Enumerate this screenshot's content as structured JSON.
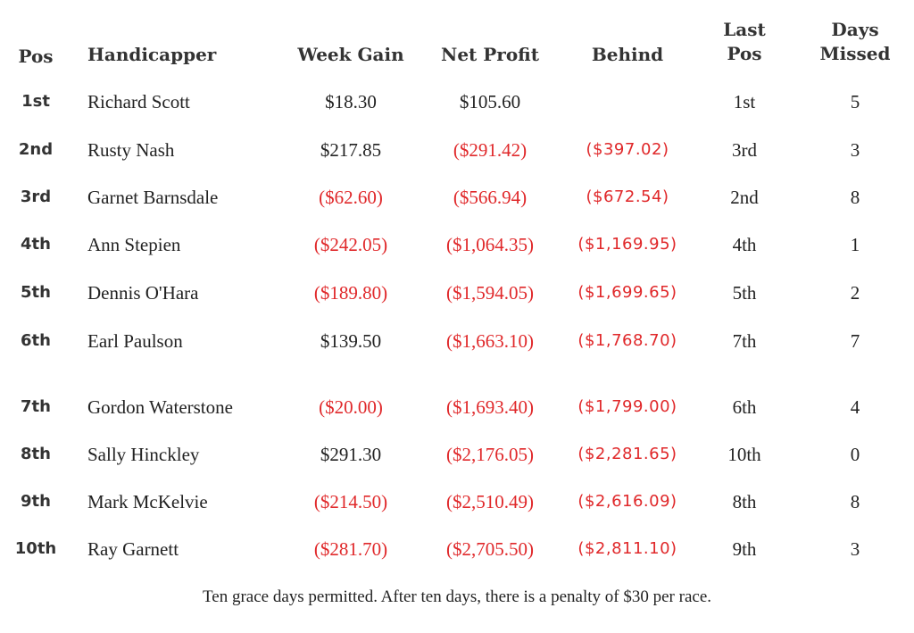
{
  "headers": {
    "pos": "Pos",
    "handicapper": "Handicapper",
    "week_gain": "Week Gain",
    "net_profit": "Net Profit",
    "behind": "Behind",
    "last_pos": [
      "Last",
      "Pos"
    ],
    "days_missed": [
      "Days",
      "Missed"
    ]
  },
  "rows": [
    {
      "pos": "1st",
      "name": "Richard Scott",
      "week_gain": "$18.30",
      "net_profit": "$105.60",
      "behind": "",
      "last_pos": "1st",
      "days_missed": "5"
    },
    {
      "pos": "2nd",
      "name": "Rusty Nash",
      "week_gain": "$217.85",
      "net_profit": "($291.42)",
      "behind": "($397.02)",
      "last_pos": "3rd",
      "days_missed": "3"
    },
    {
      "pos": "3rd",
      "name": "Garnet Barnsdale",
      "week_gain": "($62.60)",
      "net_profit": "($566.94)",
      "behind": "($672.54)",
      "last_pos": "2nd",
      "days_missed": "8"
    },
    {
      "pos": "4th",
      "name": "Ann Stepien",
      "week_gain": "($242.05)",
      "net_profit": "($1,064.35)",
      "behind": "($1,169.95)",
      "last_pos": "4th",
      "days_missed": "1"
    },
    {
      "pos": "5th",
      "name": "Dennis O'Hara",
      "week_gain": "($189.80)",
      "net_profit": "($1,594.05)",
      "behind": "($1,699.65)",
      "last_pos": "5th",
      "days_missed": "2"
    },
    {
      "pos": "6th",
      "name": "Earl Paulson",
      "week_gain": "$139.50",
      "net_profit": "($1,663.10)",
      "behind": "($1,768.70)",
      "last_pos": "7th",
      "days_missed": "7"
    },
    {
      "pos": "7th",
      "name": "Gordon Waterstone",
      "week_gain": "($20.00)",
      "net_profit": "($1,693.40)",
      "behind": "($1,799.00)",
      "last_pos": "6th",
      "days_missed": "4"
    },
    {
      "pos": "8th",
      "name": "Sally Hinckley",
      "week_gain": "$291.30",
      "net_profit": "($2,176.05)",
      "behind": "($2,281.65)",
      "last_pos": "10th",
      "days_missed": "0"
    },
    {
      "pos": "9th",
      "name": "Mark McKelvie",
      "week_gain": "($214.50)",
      "net_profit": "($2,510.49)",
      "behind": "($2,616.09)",
      "last_pos": "8th",
      "days_missed": "8"
    },
    {
      "pos": "10th",
      "name": "Ray Garnett",
      "week_gain": "($281.70)",
      "net_profit": "($2,705.50)",
      "behind": "($2,811.10)",
      "last_pos": "9th",
      "days_missed": "3"
    }
  ],
  "footer": "Ten grace days permitted.  After ten days, there is a penalty of $30 per race.",
  "colors": {
    "negative": "#e0282a",
    "text": "#222222",
    "background": "#ffffff"
  }
}
